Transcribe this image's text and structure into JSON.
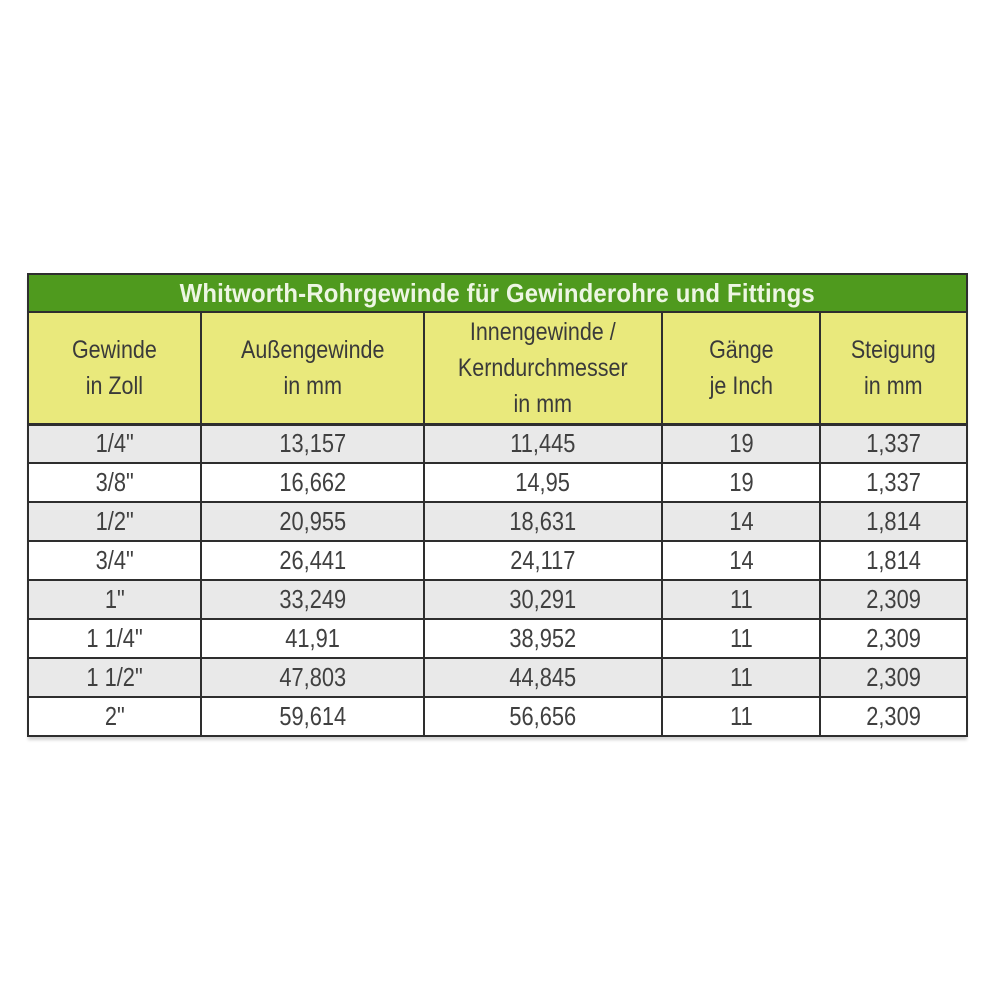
{
  "chart_data": {
    "type": "table",
    "title": "Whitworth-Rohrgewinde für Gewinderohre und Fittings",
    "columns": [
      {
        "label": "Gewinde in Zoll",
        "lines": [
          "Gewinde",
          "in Zoll"
        ]
      },
      {
        "label": "Außengewinde in mm",
        "lines": [
          "Außengewinde",
          "in mm"
        ]
      },
      {
        "label": "Innengewinde / Kerndurchmesser in mm",
        "lines": [
          "Innengewinde /",
          "Kerndurchmesser",
          "in mm"
        ]
      },
      {
        "label": "Gänge je Inch",
        "lines": [
          "Gänge",
          "je Inch"
        ]
      },
      {
        "label": "Steigung in mm",
        "lines": [
          "Steigung",
          "in mm"
        ]
      }
    ],
    "rows": [
      [
        "1/4\"",
        "13,157",
        "11,445",
        "19",
        "1,337"
      ],
      [
        "3/8\"",
        "16,662",
        "14,95",
        "19",
        "1,337"
      ],
      [
        "1/2\"",
        "20,955",
        "18,631",
        "14",
        "1,814"
      ],
      [
        "3/4\"",
        "26,441",
        "24,117",
        "14",
        "1,814"
      ],
      [
        "1\"",
        "33,249",
        "30,291",
        "11",
        "2,309"
      ],
      [
        "1 1/4\"",
        "41,91",
        "38,952",
        "11",
        "2,309"
      ],
      [
        "1 1/2\"",
        "47,803",
        "44,845",
        "11",
        "2,309"
      ],
      [
        "2\"",
        "59,614",
        "56,656",
        "11",
        "2,309"
      ]
    ],
    "column_widths_percent": [
      18.4,
      23.8,
      25.3,
      16.9,
      15.6
    ],
    "colors": {
      "title_bg": "#4f9a1e",
      "title_text": "#edf6e3",
      "header_bg": "#e9e97c",
      "row_alt_bg": "#e9e9e9",
      "row_bg": "#ffffff",
      "border": "#2e2e2e",
      "cell_text": "#404040"
    }
  }
}
